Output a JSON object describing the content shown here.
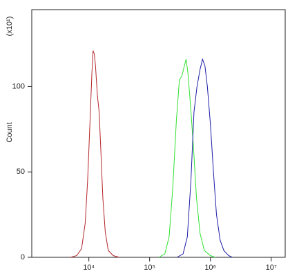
{
  "chart_data": {
    "type": "line",
    "xscale": "log",
    "ylabel": "Count",
    "y_multiplier": "(x10¹)",
    "xlim": [
      1150,
      17000000
    ],
    "ylim": [
      0,
      145
    ],
    "xticks": [
      {
        "value": 10000,
        "label": "10⁴"
      },
      {
        "value": 100000,
        "label": "10⁵"
      },
      {
        "value": 1000000,
        "label": "10⁶"
      },
      {
        "value": 10000000,
        "label": "10⁷"
      }
    ],
    "yticks": [
      0,
      50,
      100
    ],
    "series": [
      {
        "color": "#b5262b",
        "x": [
          5012,
          6310,
          7586,
          8710,
          9550,
          10470,
          11220,
          11750,
          12300,
          12880,
          13800,
          14790,
          15850,
          16980,
          18620,
          20890,
          25120,
          31620
        ],
        "values": [
          0,
          1,
          5,
          20,
          45,
          80,
          108,
          121,
          119,
          112,
          95,
          85,
          60,
          35,
          15,
          4,
          1,
          0
        ]
      },
      {
        "color": "#2ee02e",
        "x": [
          141254,
          177828,
          208930,
          239883,
          275423,
          309030,
          338844,
          371535,
          398107,
          426580,
          467735,
          524807,
          588844,
          676083,
          794328,
          1000000,
          1202264
        ],
        "values": [
          0,
          2,
          12,
          40,
          80,
          104,
          106,
          112,
          116,
          108,
          90,
          65,
          35,
          14,
          4,
          1,
          0
        ]
      },
      {
        "color": "#1c1ca6",
        "x": [
          281838,
          354813,
          416869,
          478630,
          537032,
          602560,
          676083,
          741310,
          812831,
          891251,
          1000000,
          1122018,
          1258925,
          1445440,
          1659587,
          1995262,
          2290868
        ],
        "values": [
          0,
          2,
          12,
          45,
          85,
          100,
          110,
          116,
          112,
          100,
          78,
          50,
          25,
          10,
          4,
          1,
          0
        ]
      }
    ]
  }
}
